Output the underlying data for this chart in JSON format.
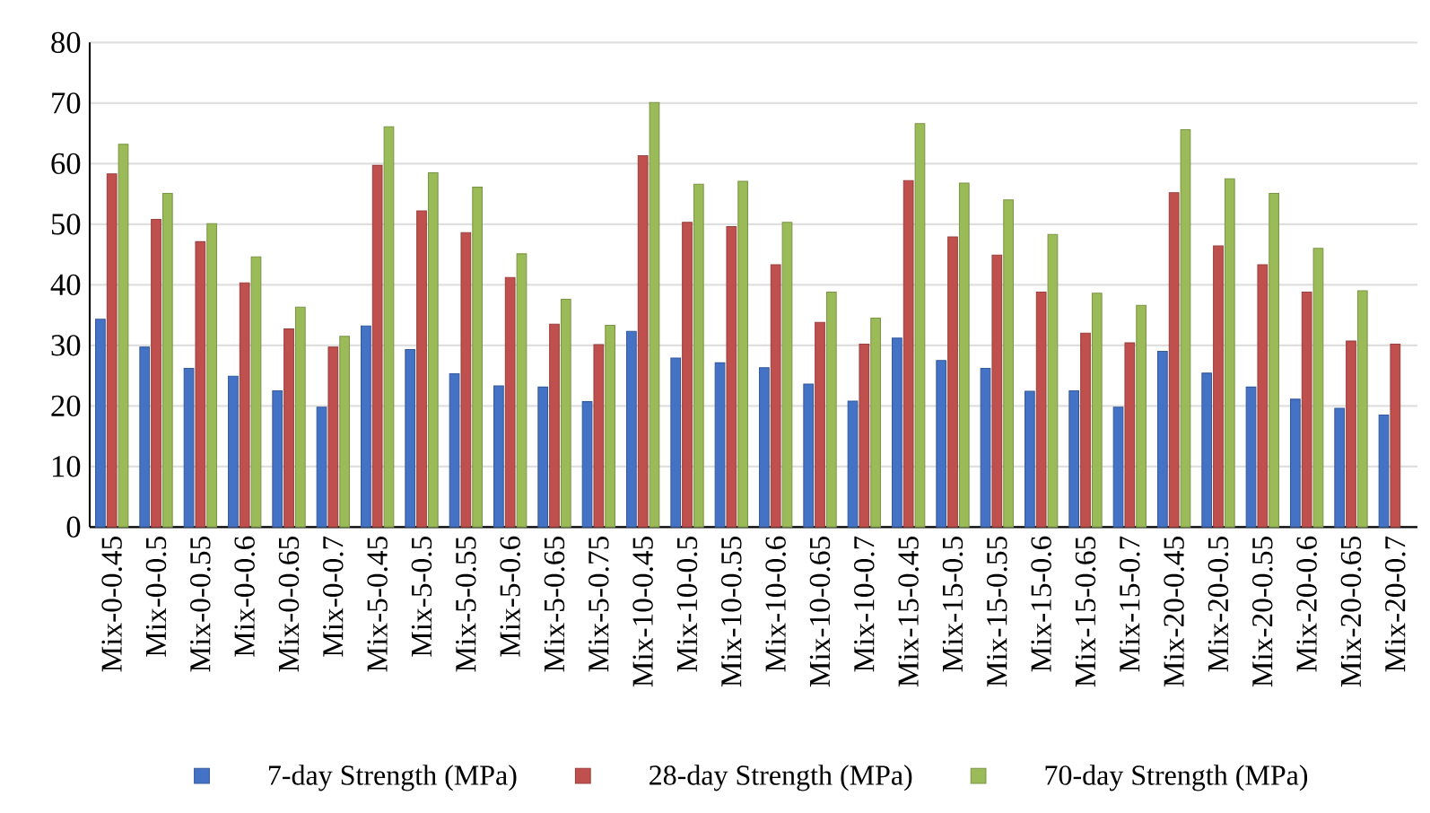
{
  "chart_data": {
    "type": "bar",
    "categories": [
      "Mix-0-0.45",
      "Mix-0-0.5",
      "Mix-0-0.55",
      "Mix-0-0.6",
      "Mix-0-0.65",
      "Mix-0-0.7",
      "Mix-5-0.45",
      "Mix-5-0.5",
      "Mix-5-0.55",
      "Mix-5-0.6",
      "Mix-5-0.65",
      "Mix-5-0.75",
      "Mix-10-0.45",
      "Mix-10-0.5",
      "Mix-10-0.55",
      "Mix-10-0.6",
      "Mix-10-0.65",
      "Mix-10-0.7",
      "Mix-15-0.45",
      "Mix-15-0.5",
      "Mix-15-0.55",
      "Mix-15-0.6",
      "Mix-15-0.65",
      "Mix-15-0.7",
      "Mix-20-0.45",
      "Mix-20-0.5",
      "Mix-20-0.55",
      "Mix-20-0.6",
      "Mix-20-0.65",
      "Mix-20-0.7"
    ],
    "series": [
      {
        "name": "7-day Strength (MPa)",
        "color": "#4472c4",
        "values": [
          34.3,
          29.7,
          26.2,
          24.9,
          22.5,
          19.8,
          33.2,
          29.3,
          25.3,
          23.3,
          23.1,
          20.7,
          32.3,
          27.9,
          27.1,
          26.3,
          23.6,
          20.8,
          31.2,
          27.5,
          26.2,
          22.4,
          22.5,
          19.8,
          29.0,
          25.4,
          23.1,
          21.1,
          19.6,
          18.5
        ]
      },
      {
        "name": "28-day Strength (MPa)",
        "color": "#c0504d",
        "values": [
          58.3,
          50.8,
          47.1,
          40.3,
          32.7,
          29.7,
          59.7,
          52.2,
          48.6,
          41.2,
          33.5,
          30.1,
          61.3,
          50.3,
          49.6,
          43.3,
          33.8,
          30.2,
          57.2,
          47.9,
          44.9,
          38.8,
          32.0,
          30.4,
          55.2,
          46.4,
          43.3,
          38.8,
          30.7,
          30.2
        ]
      },
      {
        "name": "70-day Strength (MPa)",
        "color": "#9bbb59",
        "values": [
          63.2,
          55.1,
          50.1,
          44.6,
          36.3,
          31.5,
          66.1,
          58.5,
          56.1,
          45.1,
          37.6,
          33.3,
          70.1,
          56.6,
          57.1,
          50.3,
          38.8,
          34.5,
          66.6,
          56.8,
          54.0,
          48.3,
          38.6,
          36.6,
          65.6,
          57.5,
          55.1,
          46.0,
          39.0,
          null
        ]
      }
    ],
    "ylim": [
      0,
      80
    ],
    "yticks": [
      0,
      10,
      20,
      30,
      40,
      50,
      60,
      70,
      80
    ],
    "grid": "y",
    "legend": "bottom"
  }
}
